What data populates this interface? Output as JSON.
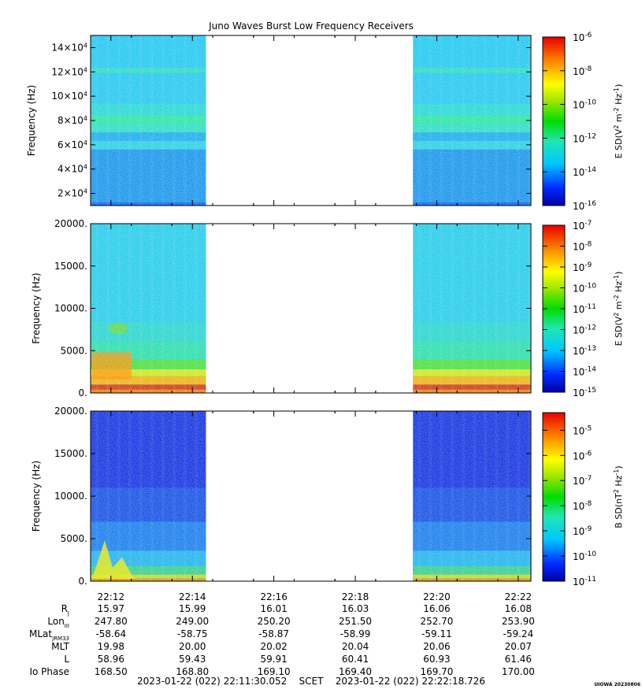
{
  "figure": {
    "title": "Juno Waves Burst Low Frequency Receivers",
    "time_range_text": "2023-01-22 (022) 22:11:30.052    SCET    2023-01-22 (022) 22:22:18.726",
    "stamp": "UIOWA 20230806"
  },
  "chart_data": [
    {
      "type": "heatmap",
      "title": "",
      "ylabel": "Frequency (Hz)",
      "yticks": [
        "2×10⁴",
        "4×10⁴",
        "6×10⁴",
        "8×10⁴",
        "10×10⁴",
        "12×10⁴",
        "14×10⁴"
      ],
      "ytick_values": [
        20000,
        40000,
        60000,
        80000,
        100000,
        120000,
        140000
      ],
      "ylim": [
        10000,
        150000
      ],
      "colorbar": {
        "label": "E SD(V² m⁻² Hz⁻¹)",
        "log_range": [
          -16,
          -6
        ],
        "ticks": [
          "10⁻⁶",
          "10⁻⁸",
          "10⁻¹⁰",
          "10⁻¹²",
          "10⁻¹⁴",
          "10⁻¹⁶"
        ],
        "tick_values": [
          -6,
          -8,
          -10,
          -12,
          -14,
          -16
        ]
      },
      "data_intervals": [
        [
          "22:11:30",
          "22:14:20"
        ],
        [
          "22:19:25",
          "22:22:18"
        ]
      ]
    },
    {
      "type": "heatmap",
      "title": "",
      "ylabel": "Frequency (Hz)",
      "yticks": [
        "0.",
        "5000.",
        "10000.",
        "15000.",
        "20000."
      ],
      "ytick_values": [
        0,
        5000,
        10000,
        15000,
        20000
      ],
      "ylim": [
        0,
        20000
      ],
      "colorbar": {
        "label": "E SD(V² m⁻² Hz⁻¹)",
        "log_range": [
          -15,
          -7
        ],
        "ticks": [
          "10⁻⁷",
          "10⁻⁸",
          "10⁻⁹",
          "10⁻¹⁰",
          "10⁻¹¹",
          "10⁻¹²",
          "10⁻¹³",
          "10⁻¹⁴",
          "10⁻¹⁵"
        ],
        "tick_values": [
          -7,
          -8,
          -9,
          -10,
          -11,
          -12,
          -13,
          -14,
          -15
        ]
      },
      "data_intervals": [
        [
          "22:11:30",
          "22:14:20"
        ],
        [
          "22:19:25",
          "22:22:18"
        ]
      ]
    },
    {
      "type": "heatmap",
      "title": "",
      "ylabel": "Frequency (Hz)",
      "yticks": [
        "0.",
        "5000.",
        "10000.",
        "15000.",
        "20000."
      ],
      "ytick_values": [
        0,
        5000,
        10000,
        15000,
        20000
      ],
      "ylim": [
        0,
        20000
      ],
      "colorbar": {
        "label": "B SD(nT² Hz⁻¹)",
        "log_range": [
          -11,
          -4.3
        ],
        "ticks": [
          "10⁻⁵",
          "10⁻⁶",
          "10⁻⁷",
          "10⁻⁸",
          "10⁻⁹",
          "10⁻¹⁰",
          "10⁻¹¹"
        ],
        "tick_values": [
          -5,
          -6,
          -7,
          -8,
          -9,
          -10,
          -11
        ]
      },
      "data_intervals": [
        [
          "22:11:30",
          "22:14:20"
        ],
        [
          "22:19:25",
          "22:22:18"
        ]
      ]
    }
  ],
  "xaxis": {
    "ticks": [
      "22:12",
      "22:14",
      "22:16",
      "22:18",
      "22:20",
      "22:22"
    ],
    "tick_minutes": [
      12,
      14,
      16,
      18,
      20,
      22
    ],
    "range_minutes": [
      11.5009,
      22.3121
    ]
  },
  "ephemeris": {
    "rows": [
      {
        "label": "R",
        "sub": "J",
        "values": [
          "15.97",
          "15.99",
          "16.01",
          "16.03",
          "16.06",
          "16.08"
        ]
      },
      {
        "label": "Lon",
        "sub": "III",
        "values": [
          "247.80",
          "249.00",
          "250.20",
          "251.50",
          "252.70",
          "253.90"
        ]
      },
      {
        "label": "MLat",
        "sub": "JRM33",
        "values": [
          "-58.64",
          "-58.75",
          "-58.87",
          "-58.99",
          "-59.11",
          "-59.24"
        ]
      },
      {
        "label": "MLT",
        "sub": "",
        "values": [
          "19.98",
          "20.00",
          "20.02",
          "20.04",
          "20.06",
          "20.07"
        ]
      },
      {
        "label": "L",
        "sub": "",
        "values": [
          "58.96",
          "59.43",
          "59.91",
          "60.41",
          "60.93",
          "61.46"
        ]
      },
      {
        "label": "Io Phase",
        "sub": "",
        "values": [
          "168.50",
          "168.80",
          "169.10",
          "169.40",
          "169.70",
          "170.00"
        ]
      }
    ]
  }
}
